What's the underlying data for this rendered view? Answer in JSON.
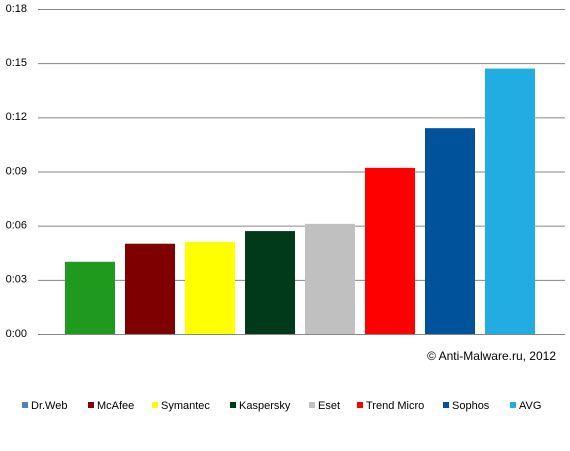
{
  "chart_data": {
    "type": "bar",
    "annotation": "© Anti-Malware.ru,  2012",
    "categories": [
      "Dr.Web",
      "McAfee",
      "Symantec",
      "Kaspersky",
      "Eset",
      "Trend Micro",
      "Sophos",
      "AVG"
    ],
    "values": [
      4.0,
      5.0,
      5.1,
      5.7,
      6.1,
      9.2,
      11.4,
      14.7
    ],
    "colors": [
      "#1f9a1f",
      "#7f0000",
      "#ffff00",
      "#003a1a",
      "#c0c0c0",
      "#ff0000",
      "#00529b",
      "#21ade2"
    ],
    "legend_colors": [
      "#4f81bd",
      "#7f0000",
      "#ffff00",
      "#003a1a",
      "#c0c0c0",
      "#ff0000",
      "#00529b",
      "#21ade2"
    ],
    "ylim": [
      0,
      18
    ],
    "yticks": [
      {
        "value": 0,
        "label": "0:00"
      },
      {
        "value": 3,
        "label": "0:03"
      },
      {
        "value": 6,
        "label": "0:06"
      },
      {
        "value": 9,
        "label": "0:09"
      },
      {
        "value": 12,
        "label": "0:12"
      },
      {
        "value": 15,
        "label": "0:15"
      },
      {
        "value": 18,
        "label": "0:18"
      }
    ],
    "grid": true
  }
}
